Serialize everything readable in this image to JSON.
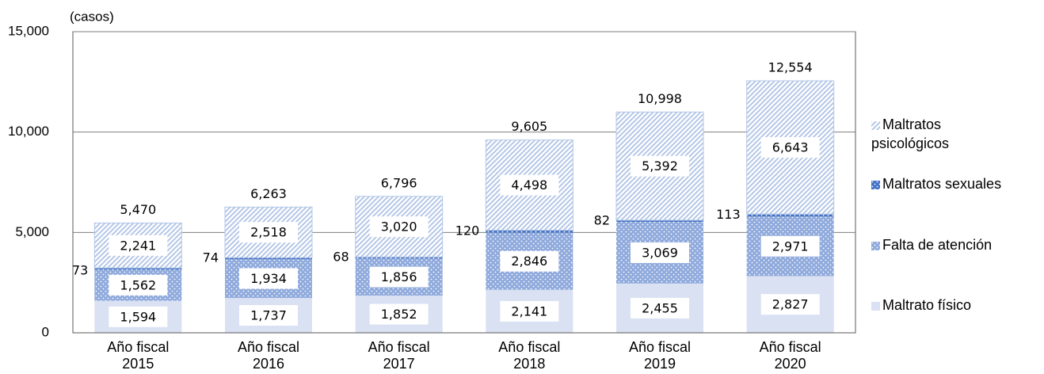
{
  "chart_data": {
    "type": "stacked_bar",
    "y_label": "(casos)",
    "categories": [
      "Año fiscal 2015",
      "Año fiscal 2016",
      "Año fiscal 2017",
      "Año fiscal 2018",
      "Año fiscal 2019",
      "Año fiscal 2020"
    ],
    "series": [
      {
        "name": "Maltrato físico",
        "color": "#d9e1f2",
        "pattern": "solid",
        "values": [
          1594,
          1737,
          1852,
          2141,
          2455,
          2827
        ],
        "value_labels": [
          "1,594",
          "1,737",
          "1,852",
          "2,141",
          "2,455",
          "2,827"
        ]
      },
      {
        "name": "Falta de atención",
        "color": "#8faadc",
        "pattern": "dots",
        "values": [
          1562,
          1934,
          1856,
          2846,
          3069,
          2971
        ],
        "value_labels": [
          "1,562",
          "1,934",
          "1,856",
          "2,846",
          "3,069",
          "2,971"
        ]
      },
      {
        "name": "Maltratos sexuales",
        "color": "#4472c4",
        "pattern": "dots",
        "values": [
          73,
          74,
          68,
          120,
          82,
          113
        ]
      },
      {
        "name": "Maltratos psicológicos",
        "color": "#b4c7e7",
        "pattern": "stripes",
        "values": [
          2241,
          2518,
          3020,
          4498,
          5392,
          6643
        ],
        "value_labels": [
          "2,241",
          "2,518",
          "3,020",
          "4,498",
          "5,392",
          "6,643"
        ]
      }
    ],
    "totals": [
      5470,
      6263,
      6796,
      9605,
      10998,
      12554
    ],
    "total_labels": [
      "5,470",
      "6,263",
      "6,796",
      "9,605",
      "10,998",
      "12,554"
    ],
    "ylim": [
      0,
      15000
    ],
    "yticks": [
      0,
      {
        "value": 5000,
        "label": "5,000"
      },
      {
        "value": 10000,
        "label": "10,000"
      },
      {
        "value": 15000,
        "label": "15,000"
      }
    ],
    "grid": true
  }
}
